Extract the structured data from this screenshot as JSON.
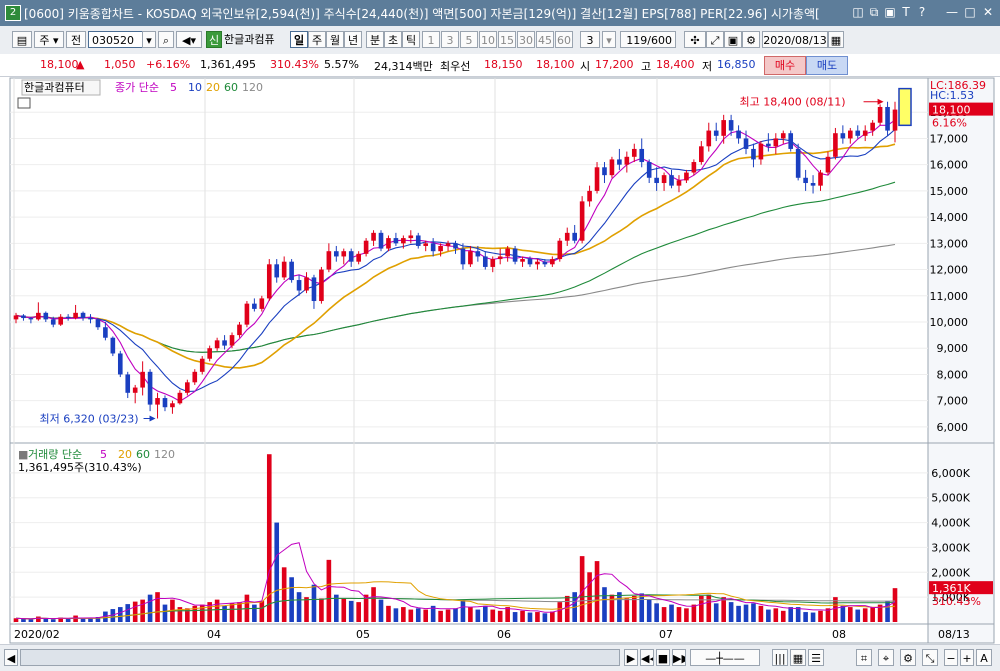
{
  "window": {
    "badge": "2",
    "title": "[0600] 키움종합차트 - KOSDAQ 외국인보유[2,594(천)] 주식수[24,440(천)] 액면[500] 자본금[129(억)] 결산[12월] EPS[788] PER[22.96] 시가총액[",
    "icons": [
      "layout-icon",
      "restore-icon",
      "pin-icon",
      "text-icon",
      "help-icon",
      "minimize-icon",
      "maximize-icon",
      "close-icon"
    ],
    "icon_glyphs": [
      "◫",
      "⧉",
      "▣",
      "T",
      "?",
      "—",
      "□",
      "✕"
    ]
  },
  "toolbar": {
    "period_label": "주",
    "prev_label": "전",
    "code": "030520",
    "market_badge": "신",
    "stock_name": "한글과컴퓨",
    "periods": [
      "일",
      "주",
      "월",
      "년",
      "분",
      "초",
      "틱"
    ],
    "intervals": [
      "1",
      "3",
      "5",
      "10",
      "15",
      "30",
      "45",
      "60"
    ],
    "interval_value": "3",
    "count": "119/600",
    "date": "2020/08/13"
  },
  "quote": {
    "price": "18,100",
    "change": "1,050",
    "change_pct": "+6.16%",
    "volume": "1,361,495",
    "volume_ratio": "310.43%",
    "turnover": "5.57%",
    "trade_value": "24,314백만",
    "best_ask_label": "최우선",
    "best_ask": "18,150",
    "best_bid": "18,100",
    "open_label": "시",
    "open": "17,200",
    "high_label": "고",
    "high": "18,400",
    "low_label": "저",
    "low": "16,850",
    "buy_label": "매수",
    "sell_label": "매도"
  },
  "chart_data": {
    "type": "candlestick",
    "stock_name": "한글과컴퓨터",
    "price_legend": {
      "label": "종가 단순",
      "ma_periods": [
        "5",
        "10",
        "20",
        "60",
        "120"
      ],
      "colors": [
        "#c000c0",
        "#1a3fc0",
        "#e0a000",
        "#1f8a3a",
        "#8a8a8a"
      ]
    },
    "volume_legend": {
      "label": "거래량 단순",
      "ma_periods": [
        "5",
        "20",
        "60",
        "120"
      ],
      "colors": [
        "#c000c0",
        "#e0a000",
        "#1f8a3a",
        "#8a8a8a"
      ],
      "current": "1,361,495주(310.43%)"
    },
    "price_axis": {
      "min": 5500,
      "max": 19000,
      "ticks": [
        "18,000",
        "17,000",
        "16,000",
        "15,000",
        "14,000",
        "13,000",
        "12,000",
        "11,000",
        "10,000",
        "9,000",
        "8,000",
        "7,000",
        "6,000"
      ],
      "tick_values": [
        18000,
        17000,
        16000,
        15000,
        14000,
        13000,
        12000,
        11000,
        10000,
        9000,
        8000,
        7000,
        6000
      ]
    },
    "volume_axis": {
      "min": 0,
      "max": 7000000,
      "ticks": [
        "6,000K",
        "5,000K",
        "4,000K",
        "3,000K",
        "2,000K",
        "1,000K"
      ],
      "tick_values": [
        6000000,
        5000000,
        4000000,
        3000000,
        2000000,
        1000000
      ]
    },
    "right_labels": {
      "lc": "LC:186.39",
      "hc": "HC:1.53",
      "price": "18,100",
      "pct": "6.16%",
      "vol": "1,361K",
      "vol_pct": "310.43%"
    },
    "x_labels": [
      "2020/02",
      "04",
      "05",
      "06",
      "07",
      "08",
      "08/13"
    ],
    "high_note": "최고 18,400 (08/11)",
    "low_note": "최저 6,320 (03/23)",
    "ohlc": [
      [
        10100,
        10350,
        9950,
        10250
      ],
      [
        10250,
        10300,
        10050,
        10150
      ],
      [
        10150,
        10200,
        9950,
        10100
      ],
      [
        10100,
        10750,
        10050,
        10350
      ],
      [
        10350,
        10400,
        10000,
        10100
      ],
      [
        10100,
        10200,
        9800,
        9900
      ],
      [
        9900,
        10300,
        9850,
        10200
      ],
      [
        10200,
        10300,
        10050,
        10150
      ],
      [
        10150,
        10650,
        10100,
        10350
      ],
      [
        10350,
        10400,
        10050,
        10150
      ],
      [
        10150,
        10300,
        9950,
        10100
      ],
      [
        10100,
        10150,
        9700,
        9800
      ],
      [
        9800,
        10000,
        9300,
        9400
      ],
      [
        9400,
        9450,
        8700,
        8800
      ],
      [
        8800,
        8900,
        7900,
        8000
      ],
      [
        8000,
        8100,
        7100,
        7300
      ],
      [
        7300,
        7600,
        6900,
        7500
      ],
      [
        7500,
        8500,
        7200,
        8100
      ],
      [
        8100,
        8200,
        6600,
        6850
      ],
      [
        6850,
        7300,
        6320,
        7100
      ],
      [
        7100,
        7200,
        6600,
        6750
      ],
      [
        6750,
        7000,
        6500,
        6900
      ],
      [
        6900,
        7400,
        6850,
        7300
      ],
      [
        7300,
        7800,
        7200,
        7700
      ],
      [
        7700,
        8200,
        7600,
        8100
      ],
      [
        8100,
        8700,
        8000,
        8600
      ],
      [
        8600,
        9100,
        8500,
        9000
      ],
      [
        9000,
        9400,
        8900,
        9300
      ],
      [
        9300,
        9500,
        8950,
        9100
      ],
      [
        9100,
        9600,
        9000,
        9500
      ],
      [
        9500,
        10000,
        9400,
        9900
      ],
      [
        9900,
        10800,
        9800,
        10700
      ],
      [
        10700,
        10900,
        10400,
        10500
      ],
      [
        10500,
        11000,
        10400,
        10900
      ],
      [
        10900,
        12400,
        10800,
        12200
      ],
      [
        12200,
        12400,
        11500,
        11700
      ],
      [
        11700,
        12500,
        11600,
        12300
      ],
      [
        12300,
        12400,
        11500,
        11600
      ],
      [
        11600,
        11800,
        11000,
        11200
      ],
      [
        11200,
        11900,
        11100,
        11700
      ],
      [
        11700,
        11800,
        10500,
        10800
      ],
      [
        10800,
        12100,
        10700,
        12000
      ],
      [
        12000,
        13000,
        11900,
        12700
      ],
      [
        12700,
        12900,
        12300,
        12500
      ],
      [
        12500,
        12800,
        12200,
        12700
      ],
      [
        12700,
        12800,
        12100,
        12300
      ],
      [
        12300,
        12700,
        12200,
        12600
      ],
      [
        12600,
        13200,
        12500,
        13100
      ],
      [
        13100,
        13500,
        12900,
        13400
      ],
      [
        13400,
        13500,
        12700,
        12800
      ],
      [
        12800,
        13300,
        12700,
        13200
      ],
      [
        13200,
        13400,
        12900,
        13000
      ],
      [
        13000,
        13300,
        12800,
        13200
      ],
      [
        13200,
        13500,
        13000,
        13300
      ],
      [
        13300,
        13400,
        12800,
        12900
      ],
      [
        12900,
        13100,
        12700,
        13000
      ],
      [
        13000,
        13200,
        12500,
        12700
      ],
      [
        12700,
        13000,
        12500,
        12900
      ],
      [
        12900,
        13100,
        12700,
        13000
      ],
      [
        13000,
        13100,
        12600,
        12800
      ],
      [
        12800,
        13000,
        12000,
        12200
      ],
      [
        12200,
        12900,
        12100,
        12700
      ],
      [
        12700,
        12900,
        12300,
        12500
      ],
      [
        12500,
        12700,
        12000,
        12100
      ],
      [
        12100,
        12500,
        11900,
        12400
      ],
      [
        12400,
        12800,
        12200,
        12500
      ],
      [
        12500,
        12900,
        12300,
        12800
      ],
      [
        12800,
        12900,
        12200,
        12300
      ],
      [
        12300,
        12500,
        12100,
        12400
      ],
      [
        12400,
        12500,
        12100,
        12200
      ],
      [
        12200,
        12400,
        12000,
        12300
      ],
      [
        12300,
        12400,
        12100,
        12200
      ],
      [
        12200,
        12500,
        12100,
        12400
      ],
      [
        12400,
        13200,
        12300,
        13100
      ],
      [
        13100,
        13600,
        12900,
        13400
      ],
      [
        13400,
        13700,
        13000,
        13100
      ],
      [
        13100,
        14800,
        13000,
        14600
      ],
      [
        14600,
        15200,
        14400,
        15000
      ],
      [
        15000,
        16100,
        14900,
        15900
      ],
      [
        15900,
        16100,
        15300,
        15600
      ],
      [
        15600,
        16300,
        15500,
        16200
      ],
      [
        16200,
        16600,
        15800,
        16000
      ],
      [
        16000,
        16500,
        15700,
        16300
      ],
      [
        16300,
        16800,
        16100,
        16600
      ],
      [
        16600,
        17000,
        15900,
        16100
      ],
      [
        16100,
        16200,
        15300,
        15500
      ],
      [
        15500,
        15900,
        15000,
        15300
      ],
      [
        15300,
        15700,
        15000,
        15600
      ],
      [
        15600,
        15800,
        15100,
        15200
      ],
      [
        15200,
        15600,
        14950,
        15400
      ],
      [
        15400,
        15800,
        15300,
        15700
      ],
      [
        15700,
        16200,
        15600,
        16100
      ],
      [
        16100,
        16900,
        16000,
        16700
      ],
      [
        16700,
        17600,
        16500,
        17300
      ],
      [
        17300,
        17600,
        16900,
        17100
      ],
      [
        17100,
        17900,
        16800,
        17700
      ],
      [
        17700,
        17900,
        17100,
        17300
      ],
      [
        17300,
        17500,
        16800,
        17000
      ],
      [
        17000,
        17300,
        16400,
        16600
      ],
      [
        16600,
        16800,
        15900,
        16200
      ],
      [
        16200,
        16900,
        16000,
        16800
      ],
      [
        16800,
        17200,
        16500,
        16700
      ],
      [
        16700,
        17200,
        16400,
        17000
      ],
      [
        17000,
        17300,
        16800,
        17200
      ],
      [
        17200,
        17300,
        16500,
        16600
      ],
      [
        16600,
        16800,
        15400,
        15500
      ],
      [
        15500,
        15800,
        15000,
        15300
      ],
      [
        15300,
        15600,
        14900,
        15200
      ],
      [
        15200,
        15800,
        15000,
        15700
      ],
      [
        15700,
        16500,
        15600,
        16300
      ],
      [
        16300,
        17400,
        16200,
        17200
      ],
      [
        17200,
        17500,
        16800,
        17000
      ],
      [
        17000,
        17400,
        16800,
        17300
      ],
      [
        17300,
        17500,
        17000,
        17100
      ],
      [
        17100,
        17500,
        16900,
        17300
      ],
      [
        17300,
        17700,
        17100,
        17600
      ],
      [
        17600,
        18300,
        17500,
        18200
      ],
      [
        18200,
        18400,
        17100,
        17300
      ],
      [
        17300,
        18400,
        16850,
        18100
      ]
    ],
    "volume": [
      150000,
      120000,
      100000,
      220000,
      130000,
      110000,
      180000,
      120000,
      260000,
      130000,
      140000,
      200000,
      420000,
      520000,
      600000,
      720000,
      820000,
      900000,
      1100000,
      1200000,
      700000,
      900000,
      600000,
      550000,
      650000,
      700000,
      800000,
      900000,
      650000,
      750000,
      800000,
      1100000,
      700000,
      850000,
      6750000,
      4000000,
      2200000,
      1800000,
      1200000,
      1000000,
      1500000,
      950000,
      2500000,
      1100000,
      950000,
      850000,
      800000,
      1100000,
      1400000,
      900000,
      650000,
      550000,
      600000,
      500000,
      550000,
      500000,
      650000,
      450000,
      500000,
      550000,
      900000,
      600000,
      500000,
      650000,
      500000,
      450000,
      600000,
      400000,
      450000,
      380000,
      400000,
      350000,
      420000,
      800000,
      1050000,
      1200000,
      2650000,
      2000000,
      2450000,
      1400000,
      1100000,
      1200000,
      950000,
      1050000,
      1150000,
      900000,
      750000,
      600000,
      700000,
      600000,
      550000,
      700000,
      1050000,
      1100000,
      750000,
      1000000,
      800000,
      650000,
      700000,
      750000,
      650000,
      500000,
      550000,
      450000,
      600000,
      600000,
      400000,
      380000,
      450000,
      550000,
      1000000,
      650000,
      600000,
      500000,
      550000,
      600000,
      700000,
      850000,
      1361495
    ]
  }
}
